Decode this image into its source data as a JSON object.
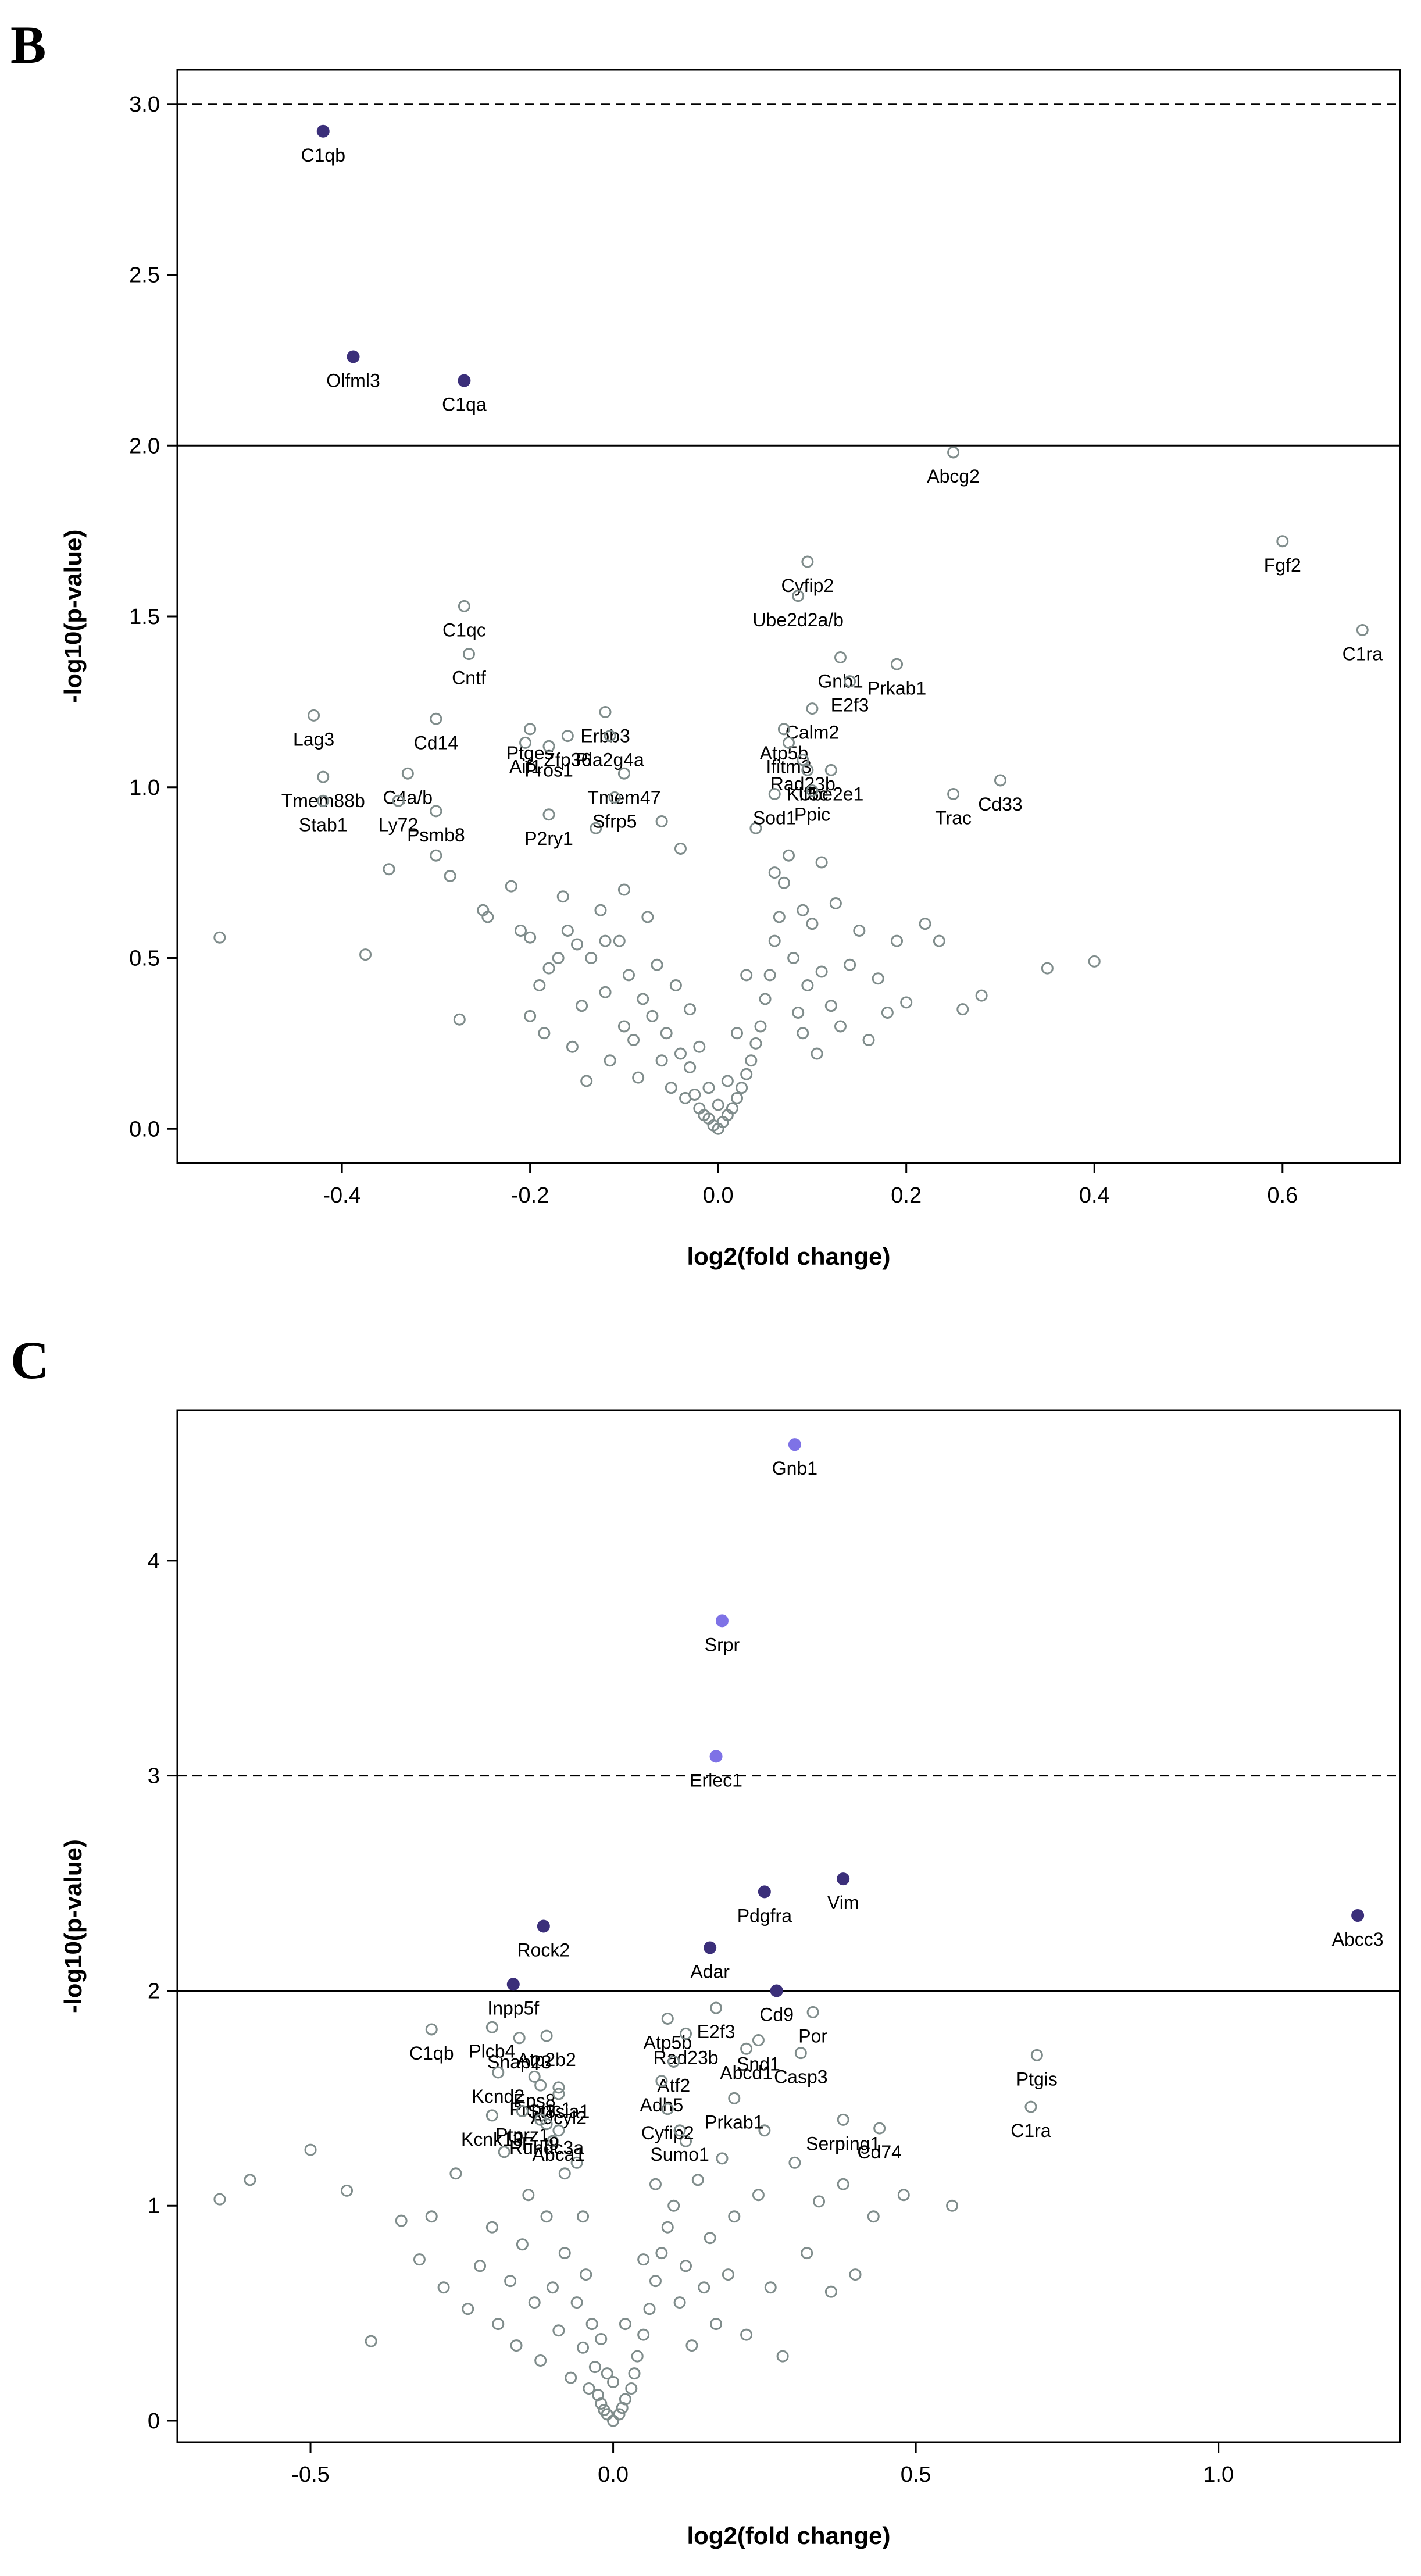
{
  "chart_data": [
    {
      "panel": "B",
      "type": "scatter",
      "xlabel": "log2(fold change)",
      "ylabel": "-log10(p-value)",
      "xlim": [
        -0.575,
        0.725
      ],
      "ylim": [
        -0.1,
        3.1
      ],
      "xticks": [
        -0.4,
        -0.2,
        0.0,
        0.2,
        0.4,
        0.6
      ],
      "yticks": [
        0.0,
        0.5,
        1.0,
        1.5,
        2.0,
        2.5,
        3.0
      ],
      "thresholds": {
        "solid": 2.0,
        "dashed": 3.0
      },
      "colors": {
        "open": "#7f8c8b",
        "sig_dark": "#3b2f7a",
        "sig_light": "#7e72e6"
      },
      "labeled": [
        {
          "name": "C1qb",
          "x": -0.42,
          "y": 2.92,
          "sig": "dark"
        },
        {
          "name": "Olfml3",
          "x": -0.388,
          "y": 2.26,
          "sig": "dark"
        },
        {
          "name": "C1qa",
          "x": -0.27,
          "y": 2.19,
          "sig": "dark"
        },
        {
          "name": "Abcg2",
          "x": 0.25,
          "y": 1.98
        },
        {
          "name": "Fgf2",
          "x": 0.6,
          "y": 1.72
        },
        {
          "name": "C1ra",
          "x": 0.685,
          "y": 1.46
        },
        {
          "name": "Cyfip2",
          "x": 0.095,
          "y": 1.66
        },
        {
          "name": "Ube2d2a/b",
          "x": 0.085,
          "y": 1.56
        },
        {
          "name": "Gnb1",
          "x": 0.13,
          "y": 1.38
        },
        {
          "name": "E2f3",
          "x": 0.14,
          "y": 1.31
        },
        {
          "name": "Prkab1",
          "x": 0.19,
          "y": 1.36
        },
        {
          "name": "Calm2",
          "x": 0.1,
          "y": 1.23
        },
        {
          "name": "Atp5b",
          "x": 0.07,
          "y": 1.17
        },
        {
          "name": "Ifitm3",
          "x": 0.075,
          "y": 1.13
        },
        {
          "name": "Rad23b",
          "x": 0.09,
          "y": 1.08
        },
        {
          "name": "Kif5c",
          "x": 0.095,
          "y": 1.05
        },
        {
          "name": "Ube2e1",
          "x": 0.12,
          "y": 1.05
        },
        {
          "name": "Sod1",
          "x": 0.06,
          "y": 0.98
        },
        {
          "name": "Ppic",
          "x": 0.1,
          "y": 0.99
        },
        {
          "name": "Trac",
          "x": 0.25,
          "y": 0.98
        },
        {
          "name": "Cd33",
          "x": 0.3,
          "y": 1.02
        },
        {
          "name": "C1qc",
          "x": -0.27,
          "y": 1.53
        },
        {
          "name": "Cntf",
          "x": -0.265,
          "y": 1.39
        },
        {
          "name": "Lag3",
          "x": -0.43,
          "y": 1.21
        },
        {
          "name": "Cd14",
          "x": -0.3,
          "y": 1.2
        },
        {
          "name": "C4a/b",
          "x": -0.33,
          "y": 1.04
        },
        {
          "name": "Ly72",
          "x": -0.34,
          "y": 0.96
        },
        {
          "name": "Psmb8",
          "x": -0.3,
          "y": 0.93
        },
        {
          "name": "Tmem88b",
          "x": -0.42,
          "y": 1.03
        },
        {
          "name": "Stab1",
          "x": -0.42,
          "y": 0.96
        },
        {
          "name": "P2ry1",
          "x": -0.18,
          "y": 0.92
        },
        {
          "name": "Ptges",
          "x": -0.2,
          "y": 1.17
        },
        {
          "name": "Zfp36",
          "x": -0.16,
          "y": 1.15
        },
        {
          "name": "Erbb3",
          "x": -0.12,
          "y": 1.22
        },
        {
          "name": "Pla2g4a",
          "x": -0.115,
          "y": 1.15
        },
        {
          "name": "Aif1",
          "x": -0.205,
          "y": 1.13
        },
        {
          "name": "Pros1",
          "x": -0.18,
          "y": 1.12
        },
        {
          "name": "Tmem47",
          "x": -0.1,
          "y": 1.04
        },
        {
          "name": "Sfrp5",
          "x": -0.11,
          "y": 0.97
        }
      ],
      "open_points": [
        [
          -0.53,
          0.56
        ],
        [
          -0.375,
          0.51
        ],
        [
          -0.35,
          0.76
        ],
        [
          -0.3,
          0.8
        ],
        [
          -0.285,
          0.74
        ],
        [
          -0.275,
          0.32
        ],
        [
          -0.25,
          0.64
        ],
        [
          -0.245,
          0.62
        ],
        [
          -0.22,
          0.71
        ],
        [
          -0.21,
          0.58
        ],
        [
          -0.2,
          0.56
        ],
        [
          -0.19,
          0.42
        ],
        [
          -0.185,
          0.28
        ],
        [
          -0.18,
          0.47
        ],
        [
          -0.17,
          0.5
        ],
        [
          -0.165,
          0.68
        ],
        [
          -0.16,
          0.58
        ],
        [
          -0.155,
          0.24
        ],
        [
          -0.15,
          0.54
        ],
        [
          -0.145,
          0.36
        ],
        [
          -0.14,
          0.14
        ],
        [
          -0.135,
          0.5
        ],
        [
          -0.13,
          0.88
        ],
        [
          -0.125,
          0.64
        ],
        [
          -0.12,
          0.4
        ],
        [
          -0.115,
          0.2
        ],
        [
          -0.105,
          0.55
        ],
        [
          -0.1,
          0.3
        ],
        [
          -0.095,
          0.45
        ],
        [
          -0.09,
          0.26
        ],
        [
          -0.085,
          0.15
        ],
        [
          -0.08,
          0.38
        ],
        [
          -0.075,
          0.62
        ],
        [
          -0.07,
          0.33
        ],
        [
          -0.065,
          0.48
        ],
        [
          -0.06,
          0.2
        ],
        [
          -0.055,
          0.28
        ],
        [
          -0.05,
          0.12
        ],
        [
          -0.045,
          0.42
        ],
        [
          -0.04,
          0.22
        ],
        [
          -0.035,
          0.09
        ],
        [
          -0.03,
          0.18
        ],
        [
          -0.025,
          0.1
        ],
        [
          -0.02,
          0.06
        ],
        [
          -0.015,
          0.04
        ],
        [
          -0.01,
          0.03
        ],
        [
          -0.005,
          0.01
        ],
        [
          0.0,
          0.0
        ],
        [
          0.005,
          0.02
        ],
        [
          0.01,
          0.04
        ],
        [
          0.015,
          0.06
        ],
        [
          0.02,
          0.09
        ],
        [
          0.025,
          0.12
        ],
        [
          0.03,
          0.16
        ],
        [
          0.035,
          0.2
        ],
        [
          0.04,
          0.25
        ],
        [
          0.045,
          0.3
        ],
        [
          0.05,
          0.38
        ],
        [
          0.055,
          0.45
        ],
        [
          0.06,
          0.55
        ],
        [
          0.065,
          0.62
        ],
        [
          0.07,
          0.72
        ],
        [
          0.075,
          0.8
        ],
        [
          0.08,
          0.5
        ],
        [
          0.085,
          0.34
        ],
        [
          0.09,
          0.28
        ],
        [
          0.095,
          0.42
        ],
        [
          0.1,
          0.6
        ],
        [
          0.105,
          0.22
        ],
        [
          0.11,
          0.46
        ],
        [
          0.12,
          0.36
        ],
        [
          0.125,
          0.66
        ],
        [
          0.13,
          0.3
        ],
        [
          0.14,
          0.48
        ],
        [
          0.15,
          0.58
        ],
        [
          0.16,
          0.26
        ],
        [
          0.17,
          0.44
        ],
        [
          0.18,
          0.34
        ],
        [
          0.19,
          0.55
        ],
        [
          0.2,
          0.37
        ],
        [
          0.22,
          0.6
        ],
        [
          0.235,
          0.55
        ],
        [
          0.26,
          0.35
        ],
        [
          0.28,
          0.39
        ],
        [
          0.35,
          0.47
        ],
        [
          0.4,
          0.49
        ],
        [
          -0.06,
          0.9
        ],
        [
          -0.04,
          0.82
        ],
        [
          0.04,
          0.88
        ],
        [
          0.06,
          0.75
        ],
        [
          0.09,
          0.64
        ],
        [
          0.11,
          0.78
        ],
        [
          -0.1,
          0.7
        ],
        [
          -0.12,
          0.55
        ],
        [
          -0.2,
          0.33
        ],
        [
          0.03,
          0.45
        ],
        [
          -0.03,
          0.35
        ],
        [
          0.02,
          0.28
        ],
        [
          -0.02,
          0.24
        ],
        [
          0.01,
          0.14
        ],
        [
          -0.01,
          0.12
        ],
        [
          0.0,
          0.07
        ]
      ]
    },
    {
      "panel": "C",
      "type": "scatter",
      "xlabel": "log2(fold change)",
      "ylabel": "-log10(p-value)",
      "xlim": [
        -0.72,
        1.3
      ],
      "ylim": [
        -0.1,
        4.7
      ],
      "xticks": [
        -0.5,
        0.0,
        0.5,
        1.0
      ],
      "yticks": [
        0,
        1,
        2,
        3,
        4
      ],
      "thresholds": {
        "solid": 2.0,
        "dashed": 3.0
      },
      "colors": {
        "open": "#7f8c8b",
        "sig_dark": "#3b2f7a",
        "sig_light": "#7e72e6"
      },
      "labeled": [
        {
          "name": "Gnb1",
          "x": 0.3,
          "y": 4.54,
          "sig": "light"
        },
        {
          "name": "Srpr",
          "x": 0.18,
          "y": 3.72,
          "sig": "light"
        },
        {
          "name": "Erlec1",
          "x": 0.17,
          "y": 3.09,
          "sig": "light"
        },
        {
          "name": "Vim",
          "x": 0.38,
          "y": 2.52,
          "sig": "dark"
        },
        {
          "name": "Pdgfra",
          "x": 0.25,
          "y": 2.46,
          "sig": "dark"
        },
        {
          "name": "Abcc3",
          "x": 1.23,
          "y": 2.35,
          "sig": "dark"
        },
        {
          "name": "Rock2",
          "x": -0.115,
          "y": 2.3,
          "sig": "dark"
        },
        {
          "name": "Adar",
          "x": 0.16,
          "y": 2.2,
          "sig": "dark"
        },
        {
          "name": "Inpp5f",
          "x": -0.165,
          "y": 2.03,
          "sig": "dark"
        },
        {
          "name": "Cd9",
          "x": 0.27,
          "y": 2.0,
          "sig": "dark"
        },
        {
          "name": "E2f3",
          "x": 0.17,
          "y": 1.92
        },
        {
          "name": "Por",
          "x": 0.33,
          "y": 1.9
        },
        {
          "name": "Atp5b",
          "x": 0.09,
          "y": 1.87
        },
        {
          "name": "Rad23b",
          "x": 0.12,
          "y": 1.8
        },
        {
          "name": "Abcd1",
          "x": 0.22,
          "y": 1.73
        },
        {
          "name": "Snd1",
          "x": 0.24,
          "y": 1.77
        },
        {
          "name": "Casp3",
          "x": 0.31,
          "y": 1.71
        },
        {
          "name": "Atf2",
          "x": 0.1,
          "y": 1.67
        },
        {
          "name": "Adh5",
          "x": 0.08,
          "y": 1.58
        },
        {
          "name": "Prkab1",
          "x": 0.2,
          "y": 1.5
        },
        {
          "name": "Cyfip2",
          "x": 0.09,
          "y": 1.45
        },
        {
          "name": "Sumo1",
          "x": 0.11,
          "y": 1.35
        },
        {
          "name": "Serping1",
          "x": 0.38,
          "y": 1.4
        },
        {
          "name": "Cd74",
          "x": 0.44,
          "y": 1.36
        },
        {
          "name": "Ptgis",
          "x": 0.7,
          "y": 1.7
        },
        {
          "name": "C1ra",
          "x": 0.69,
          "y": 1.46
        },
        {
          "name": "C1qb",
          "x": -0.3,
          "y": 1.82
        },
        {
          "name": "Plcb4",
          "x": -0.2,
          "y": 1.83
        },
        {
          "name": "Snap23",
          "x": -0.155,
          "y": 1.78
        },
        {
          "name": "Atp2b2",
          "x": -0.11,
          "y": 1.79
        },
        {
          "name": "Kcnd2",
          "x": -0.19,
          "y": 1.62
        },
        {
          "name": "Eps8",
          "x": -0.13,
          "y": 1.6
        },
        {
          "name": "Pitpnc1",
          "x": -0.12,
          "y": 1.56
        },
        {
          "name": "St8sia1",
          "x": -0.09,
          "y": 1.55
        },
        {
          "name": "Adcyl2",
          "x": -0.09,
          "y": 1.52
        },
        {
          "name": "Kcnk13",
          "x": -0.2,
          "y": 1.42
        },
        {
          "name": "Ptprz1",
          "x": -0.15,
          "y": 1.44
        },
        {
          "name": "Fut9",
          "x": -0.12,
          "y": 1.4
        },
        {
          "name": "Rundc3a",
          "x": -0.11,
          "y": 1.38
        },
        {
          "name": "Abca1",
          "x": -0.09,
          "y": 1.35
        }
      ],
      "open_points": [
        [
          -0.65,
          1.03
        ],
        [
          -0.6,
          1.12
        ],
        [
          -0.5,
          1.26
        ],
        [
          -0.44,
          1.07
        ],
        [
          -0.4,
          0.37
        ],
        [
          -0.35,
          0.93
        ],
        [
          -0.32,
          0.75
        ],
        [
          -0.3,
          0.95
        ],
        [
          -0.28,
          0.62
        ],
        [
          -0.26,
          1.15
        ],
        [
          -0.24,
          0.52
        ],
        [
          -0.22,
          0.72
        ],
        [
          -0.2,
          0.9
        ],
        [
          -0.19,
          0.45
        ],
        [
          -0.18,
          1.25
        ],
        [
          -0.17,
          0.65
        ],
        [
          -0.16,
          0.35
        ],
        [
          -0.15,
          0.82
        ],
        [
          -0.14,
          1.05
        ],
        [
          -0.13,
          0.55
        ],
        [
          -0.12,
          0.28
        ],
        [
          -0.11,
          0.95
        ],
        [
          -0.1,
          0.62
        ],
        [
          -0.09,
          0.42
        ],
        [
          -0.08,
          0.78
        ],
        [
          -0.07,
          0.2
        ],
        [
          -0.06,
          0.55
        ],
        [
          -0.05,
          0.34
        ],
        [
          -0.045,
          0.68
        ],
        [
          -0.04,
          0.15
        ],
        [
          -0.035,
          0.45
        ],
        [
          -0.03,
          0.25
        ],
        [
          -0.025,
          0.12
        ],
        [
          -0.02,
          0.08
        ],
        [
          -0.015,
          0.05
        ],
        [
          -0.01,
          0.03
        ],
        [
          0.0,
          0.0
        ],
        [
          0.01,
          0.03
        ],
        [
          0.015,
          0.06
        ],
        [
          0.02,
          0.1
        ],
        [
          0.03,
          0.15
        ],
        [
          0.035,
          0.22
        ],
        [
          0.04,
          0.3
        ],
        [
          0.05,
          0.4
        ],
        [
          0.06,
          0.52
        ],
        [
          0.07,
          0.65
        ],
        [
          0.08,
          0.78
        ],
        [
          0.09,
          0.9
        ],
        [
          0.1,
          1.0
        ],
        [
          0.11,
          0.55
        ],
        [
          0.12,
          0.72
        ],
        [
          0.13,
          0.35
        ],
        [
          0.14,
          1.12
        ],
        [
          0.15,
          0.62
        ],
        [
          0.16,
          0.85
        ],
        [
          0.17,
          0.45
        ],
        [
          0.18,
          1.22
        ],
        [
          0.19,
          0.68
        ],
        [
          0.2,
          0.95
        ],
        [
          0.22,
          0.4
        ],
        [
          0.24,
          1.05
        ],
        [
          0.26,
          0.62
        ],
        [
          0.28,
          0.3
        ],
        [
          0.3,
          1.2
        ],
        [
          0.32,
          0.78
        ],
        [
          0.34,
          1.02
        ],
        [
          0.36,
          0.6
        ],
        [
          0.38,
          1.1
        ],
        [
          0.4,
          0.68
        ],
        [
          0.43,
          0.95
        ],
        [
          0.48,
          1.05
        ],
        [
          0.56,
          1.0
        ],
        [
          -0.08,
          1.15
        ],
        [
          -0.05,
          0.95
        ],
        [
          0.05,
          0.75
        ],
        [
          0.02,
          0.45
        ],
        [
          -0.02,
          0.38
        ],
        [
          0.07,
          1.1
        ],
        [
          -0.1,
          1.3
        ],
        [
          0.12,
          1.3
        ],
        [
          0.25,
          1.35
        ],
        [
          -0.06,
          1.2
        ],
        [
          0.0,
          0.18
        ],
        [
          -0.01,
          0.22
        ]
      ]
    }
  ]
}
